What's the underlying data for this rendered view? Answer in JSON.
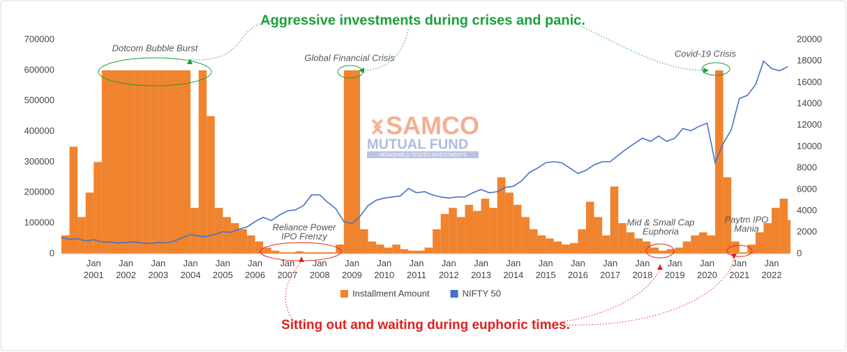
{
  "chart_data": {
    "type": "combo",
    "headline_top": "Aggressive investments during crises and panic.",
    "headline_bottom": "Sitting out and waiting during euphoric times.",
    "watermark": [
      "SAMCO",
      "MUTUAL FUND",
      "NEKASHIELD TESTED INVESTMENTS"
    ],
    "x": [
      "2000-01",
      "2000-04",
      "2000-07",
      "2000-10",
      "2001-01",
      "2001-04",
      "2001-07",
      "2001-10",
      "2002-01",
      "2002-04",
      "2002-07",
      "2002-10",
      "2003-01",
      "2003-04",
      "2003-07",
      "2003-10",
      "2004-01",
      "2004-04",
      "2004-07",
      "2004-10",
      "2005-01",
      "2005-04",
      "2005-07",
      "2005-10",
      "2006-01",
      "2006-04",
      "2006-07",
      "2006-10",
      "2007-01",
      "2007-04",
      "2007-07",
      "2007-10",
      "2008-01",
      "2008-04",
      "2008-07",
      "2008-10",
      "2009-01",
      "2009-04",
      "2009-07",
      "2009-10",
      "2010-01",
      "2010-04",
      "2010-07",
      "2010-10",
      "2011-01",
      "2011-04",
      "2011-07",
      "2011-10",
      "2012-01",
      "2012-04",
      "2012-07",
      "2012-10",
      "2013-01",
      "2013-04",
      "2013-07",
      "2013-10",
      "2014-01",
      "2014-04",
      "2014-07",
      "2014-10",
      "2015-01",
      "2015-04",
      "2015-07",
      "2015-10",
      "2016-01",
      "2016-04",
      "2016-07",
      "2016-10",
      "2017-01",
      "2017-04",
      "2017-07",
      "2017-10",
      "2018-01",
      "2018-04",
      "2018-07",
      "2018-10",
      "2019-01",
      "2019-04",
      "2019-07",
      "2019-10",
      "2020-01",
      "2020-04",
      "2020-07",
      "2020-10",
      "2021-01",
      "2021-04",
      "2021-07",
      "2021-10",
      "2022-01",
      "2022-04",
      "2022-07"
    ],
    "xlim": [
      "2000-01",
      "2022-08"
    ],
    "xticks": [
      {
        "value": "2001-01",
        "label": "Jan 2001"
      },
      {
        "value": "2002-01",
        "label": "Jan 2002"
      },
      {
        "value": "2003-01",
        "label": "Jan 2003"
      },
      {
        "value": "2004-01",
        "label": "Jan 2004"
      },
      {
        "value": "2005-01",
        "label": "Jan 2005"
      },
      {
        "value": "2006-01",
        "label": "Jan 2006"
      },
      {
        "value": "2007-01",
        "label": "Jan 2007"
      },
      {
        "value": "2008-01",
        "label": "Jan 2008"
      },
      {
        "value": "2009-01",
        "label": "Jan 2009"
      },
      {
        "value": "2010-01",
        "label": "Jan 2010"
      },
      {
        "value": "2011-01",
        "label": "Jan 2011"
      },
      {
        "value": "2012-01",
        "label": "Jan 2012"
      },
      {
        "value": "2013-01",
        "label": "Jan 2013"
      },
      {
        "value": "2014-01",
        "label": "Jan 2014"
      },
      {
        "value": "2015-01",
        "label": "Jan 2015"
      },
      {
        "value": "2016-01",
        "label": "Jan 2016"
      },
      {
        "value": "2017-01",
        "label": "Jan 2017"
      },
      {
        "value": "2018-01",
        "label": "Jan 2018"
      },
      {
        "value": "2019-01",
        "label": "Jan 2019"
      },
      {
        "value": "2020-01",
        "label": "Jan 2020"
      },
      {
        "value": "2021-01",
        "label": "Jan 2021"
      },
      {
        "value": "2022-01",
        "label": "Jan 2022"
      }
    ],
    "ylim": [
      0,
      700000
    ],
    "yticks": [
      0,
      100000,
      200000,
      300000,
      400000,
      500000,
      600000,
      700000
    ],
    "y2lim": [
      0,
      20000
    ],
    "y2ticks": [
      0,
      2000,
      4000,
      6000,
      8000,
      10000,
      12000,
      14000,
      16000,
      18000,
      20000
    ],
    "legend": "bottom",
    "series": [
      {
        "name": "Installment Amount",
        "color": "#f0832e",
        "mark": "bar",
        "values": [
          60000,
          350000,
          120000,
          200000,
          300000,
          600000,
          600000,
          600000,
          600000,
          600000,
          600000,
          600000,
          600000,
          600000,
          600000,
          600000,
          150000,
          600000,
          450000,
          150000,
          120000,
          100000,
          80000,
          60000,
          40000,
          20000,
          10000,
          5000,
          5000,
          8000,
          5000,
          5000,
          5000,
          5000,
          30000,
          600000,
          600000,
          80000,
          40000,
          30000,
          20000,
          30000,
          15000,
          10000,
          10000,
          20000,
          80000,
          130000,
          150000,
          120000,
          160000,
          140000,
          180000,
          150000,
          250000,
          200000,
          160000,
          120000,
          80000,
          60000,
          50000,
          40000,
          30000,
          35000,
          80000,
          170000,
          120000,
          60000,
          220000,
          100000,
          70000,
          50000,
          40000,
          20000,
          10000,
          15000,
          20000,
          40000,
          60000,
          70000,
          60000,
          600000,
          250000,
          40000,
          5000,
          30000,
          70000,
          100000,
          150000,
          180000,
          110000
        ]
      },
      {
        "name": "NIFTY 50",
        "color": "#4472c4",
        "mark": "line",
        "axis": "y2",
        "values": [
          1500,
          1350,
          1400,
          1200,
          1300,
          1100,
          1100,
          1000,
          1050,
          1100,
          1000,
          950,
          1050,
          1000,
          1200,
          1500,
          1800,
          1650,
          1600,
          1800,
          2050,
          2000,
          2300,
          2500,
          3000,
          3400,
          3100,
          3600,
          4000,
          4100,
          4500,
          5500,
          5500,
          4800,
          4200,
          3000,
          2800,
          3500,
          4500,
          5000,
          5200,
          5300,
          5400,
          6100,
          5700,
          5800,
          5500,
          5300,
          5200,
          5300,
          5300,
          5700,
          6000,
          5700,
          5800,
          6200,
          6300,
          6800,
          7600,
          8000,
          8500,
          8600,
          8500,
          8000,
          7500,
          7800,
          8300,
          8600,
          8600,
          9200,
          9800,
          10300,
          10800,
          10500,
          11000,
          10500,
          10800,
          11700,
          11500,
          11900,
          12200,
          8500,
          10300,
          11600,
          14500,
          14800,
          15800,
          18000,
          17300,
          17100,
          17500
        ]
      }
    ],
    "annotations": [
      {
        "text": [
          "Dotcom Bubble Burst"
        ],
        "color": "#1a9e3a"
      },
      {
        "text": [
          "Global Financial Crisis"
        ],
        "color": "#1a9e3a"
      },
      {
        "text": [
          "Covid-19 Crisis"
        ],
        "color": "#1a9e3a"
      },
      {
        "text": [
          "Reliance Power",
          "IPO Frenzy"
        ],
        "color": "#e02020"
      },
      {
        "text": [
          "Mid & Small Cap",
          "Euphoria"
        ],
        "color": "#e02020"
      },
      {
        "text": [
          "Paytm IPO",
          "Mania"
        ],
        "color": "#e02020"
      }
    ]
  }
}
